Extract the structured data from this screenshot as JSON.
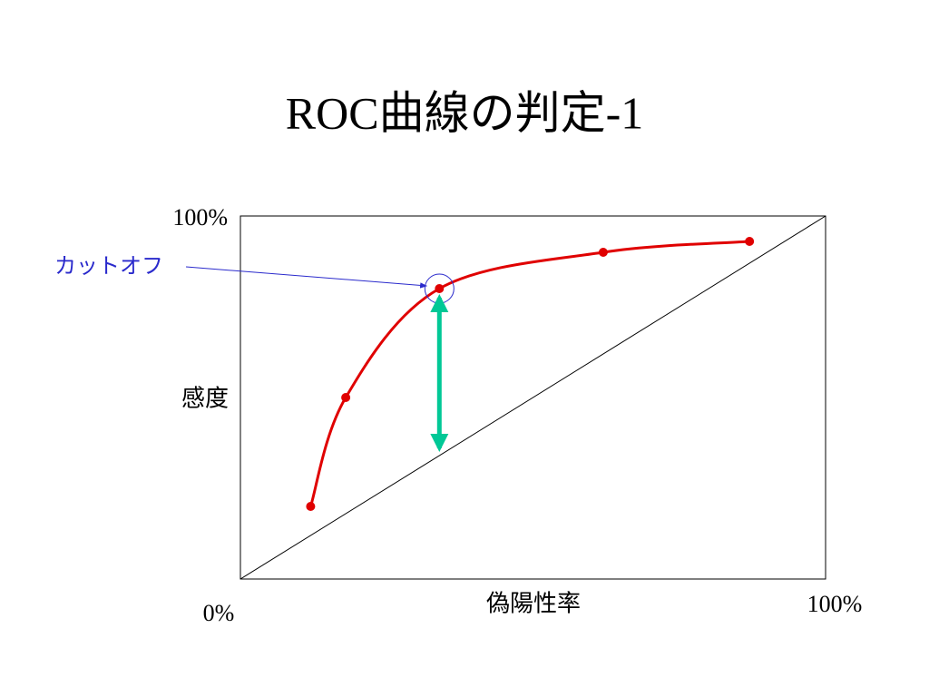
{
  "chart_data": {
    "type": "line",
    "title": "ROC曲線の判定-1",
    "x_label": "偽陽性率",
    "y_label": "感度",
    "x": [
      12,
      18,
      34,
      62,
      87
    ],
    "series": [
      {
        "color": "#e00000",
        "values": [
          20,
          50,
          80,
          90,
          93
        ]
      }
    ],
    "xlim": [
      0,
      100
    ],
    "ylim": [
      0,
      100
    ],
    "xticks": [
      {
        "value": 0,
        "label": "0%"
      },
      {
        "value": 100,
        "label": "100%"
      }
    ],
    "yticks": [
      {
        "value": 100,
        "label": "100%"
      }
    ],
    "annotations": [
      {
        "text": "カットオフ"
      }
    ]
  }
}
